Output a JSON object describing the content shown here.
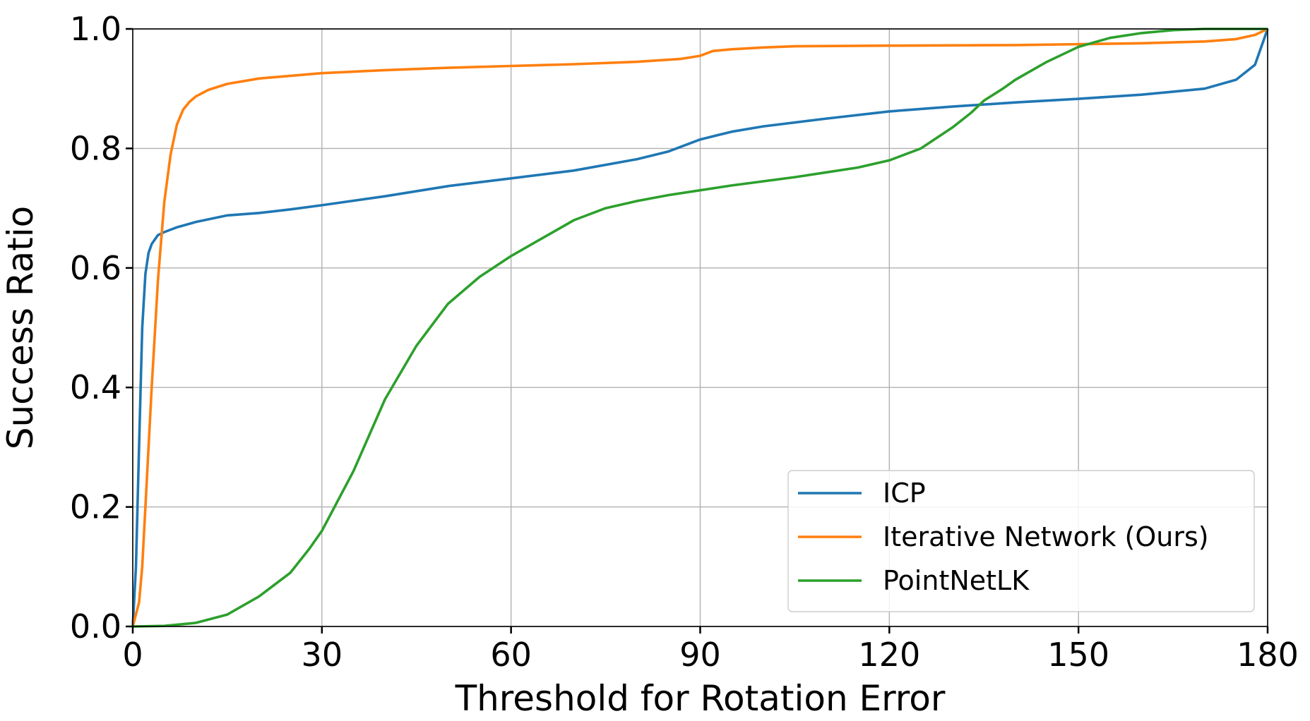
{
  "chart_data": {
    "type": "line",
    "title": "",
    "xlabel": "Threshold for Rotation Error",
    "ylabel": "Success Ratio",
    "xlim": [
      0,
      180
    ],
    "ylim": [
      0,
      1
    ],
    "xticks": [
      0,
      30,
      60,
      90,
      120,
      150,
      180
    ],
    "yticks": [
      0,
      0.2,
      0.4,
      0.6,
      0.8,
      1
    ],
    "xtick_labels": [
      "0",
      "30",
      "60",
      "90",
      "120",
      "150",
      "180"
    ],
    "ytick_labels": [
      "0.0",
      "0.2",
      "0.4",
      "0.6",
      "0.8",
      "1.0"
    ],
    "grid": true,
    "legend_position": "bottom-right",
    "series": [
      {
        "name": "ICP",
        "color": "#1f77b4",
        "x": [
          0,
          0.5,
          1,
          1.5,
          2,
          2.5,
          3,
          4,
          5,
          7,
          10,
          15,
          20,
          25,
          30,
          40,
          50,
          60,
          70,
          80,
          85,
          90,
          95,
          100,
          110,
          120,
          130,
          140,
          150,
          160,
          170,
          175,
          178,
          180
        ],
        "y": [
          0,
          0.1,
          0.3,
          0.5,
          0.59,
          0.625,
          0.64,
          0.655,
          0.66,
          0.668,
          0.677,
          0.688,
          0.692,
          0.698,
          0.705,
          0.72,
          0.737,
          0.75,
          0.763,
          0.782,
          0.795,
          0.815,
          0.828,
          0.837,
          0.85,
          0.862,
          0.87,
          0.877,
          0.883,
          0.89,
          0.9,
          0.915,
          0.94,
          1.0
        ]
      },
      {
        "name": "Iterative Network (Ours)",
        "color": "#ff7f0e",
        "x": [
          0,
          1,
          1.5,
          2,
          3,
          4,
          5,
          6,
          7,
          8,
          9,
          10,
          12,
          15,
          20,
          30,
          40,
          50,
          60,
          70,
          80,
          87,
          90,
          92,
          95,
          100,
          105,
          120,
          140,
          160,
          170,
          175,
          178,
          180
        ],
        "y": [
          0,
          0.04,
          0.1,
          0.2,
          0.4,
          0.58,
          0.71,
          0.79,
          0.84,
          0.865,
          0.878,
          0.887,
          0.898,
          0.908,
          0.917,
          0.926,
          0.931,
          0.935,
          0.938,
          0.941,
          0.945,
          0.95,
          0.955,
          0.963,
          0.966,
          0.969,
          0.971,
          0.972,
          0.973,
          0.976,
          0.979,
          0.983,
          0.99,
          1.0
        ]
      },
      {
        "name": "PointNetLK",
        "color": "#2ca02c",
        "x": [
          0,
          5,
          10,
          15,
          20,
          25,
          28,
          30,
          35,
          40,
          45,
          50,
          55,
          60,
          65,
          70,
          75,
          80,
          85,
          90,
          95,
          100,
          105,
          110,
          115,
          120,
          125,
          130,
          133,
          135,
          138,
          140,
          145,
          150,
          155,
          160,
          165,
          170,
          180
        ],
        "y": [
          0,
          0.001,
          0.006,
          0.02,
          0.05,
          0.09,
          0.13,
          0.16,
          0.26,
          0.38,
          0.47,
          0.54,
          0.585,
          0.62,
          0.65,
          0.68,
          0.7,
          0.712,
          0.722,
          0.73,
          0.738,
          0.745,
          0.752,
          0.76,
          0.768,
          0.78,
          0.8,
          0.835,
          0.86,
          0.88,
          0.9,
          0.915,
          0.945,
          0.97,
          0.985,
          0.993,
          0.998,
          1.0,
          1.0
        ]
      }
    ]
  }
}
